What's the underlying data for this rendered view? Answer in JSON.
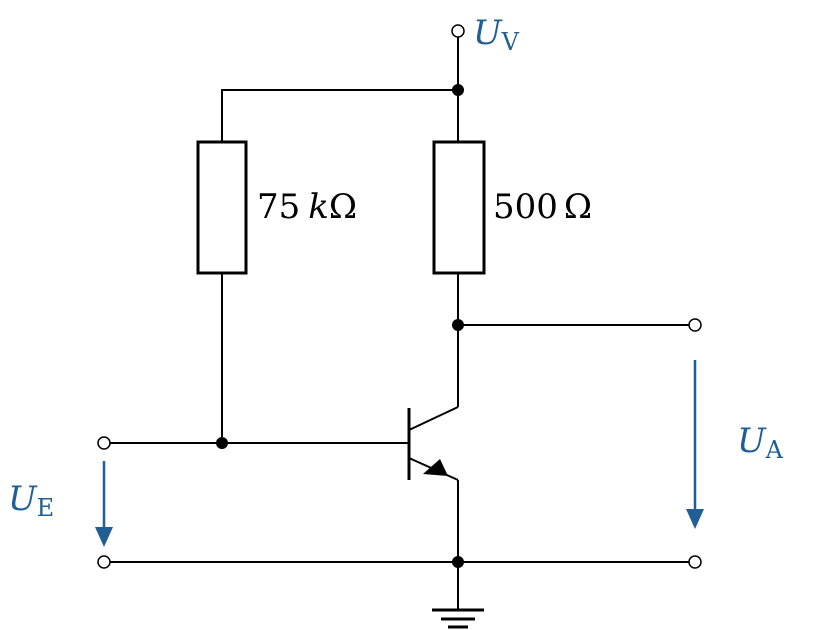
{
  "colors": {
    "wire": "#000000",
    "voltage": "#1f5f96"
  },
  "labels": {
    "supply_voltage": {
      "main": "U",
      "sub": "V"
    },
    "input_voltage": {
      "main": "U",
      "sub": "E"
    },
    "output_voltage": {
      "main": "U",
      "sub": "A"
    },
    "base_resistor": {
      "value": "75",
      "unit_prefix": "k",
      "unit": "Ω"
    },
    "collector_resistor": {
      "value": "500",
      "unit": "Ω"
    }
  }
}
